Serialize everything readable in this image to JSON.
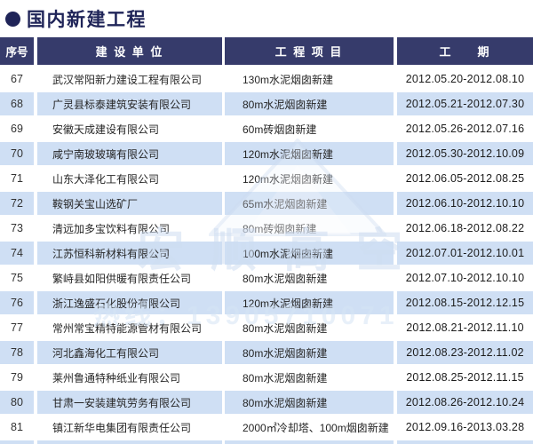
{
  "title": {
    "bullet": "●",
    "text": "国内新建工程"
  },
  "table": {
    "headers": [
      "序号",
      "建 设 单 位",
      "工 程 项 目",
      "工     期"
    ],
    "rows": [
      {
        "no": "67",
        "company": "武汉常阳新力建设工程有限公司",
        "project": "130m水泥烟囱新建",
        "period": "2012.05.20-2012.08.10"
      },
      {
        "no": "68",
        "company": "广灵县标泰建筑安装有限公司",
        "project": "80m水泥烟囱新建",
        "period": "2012.05.21-2012.07.30"
      },
      {
        "no": "69",
        "company": "安徽天成建设有限公司",
        "project": "60m砖烟囱新建",
        "period": "2012.05.26-2012.07.16"
      },
      {
        "no": "70",
        "company": "咸宁南玻玻璃有限公司",
        "project": "120m水泥烟囱新建",
        "period": "2012.05.30-2012.10.09"
      },
      {
        "no": "71",
        "company": "山东大泽化工有限公司",
        "project": "120m水泥烟囱新建",
        "period": "2012.06.05-2012.08.25"
      },
      {
        "no": "72",
        "company": "鞍钢关宝山选矿厂",
        "project": "65m水泥烟囱新建",
        "period": "2012.06.10-2012.10.10"
      },
      {
        "no": "73",
        "company": "清远加多宝饮料有限公司",
        "project": "80m砖烟囱新建",
        "period": "2012.06.18-2012.08.22"
      },
      {
        "no": "74",
        "company": "江苏恒科新材料有限公司",
        "project": "100m水泥烟囱新建",
        "period": "2012.07.01-2012.10.01"
      },
      {
        "no": "75",
        "company": "繁峙县如阳供暖有限责任公司",
        "project": "80m水泥烟囱新建",
        "period": "2012.07.10-2012.10.10"
      },
      {
        "no": "76",
        "company": "浙江逸盛石化股份有限公司",
        "project": "120m水泥烟囱新建",
        "period": "2012.08.15-2012.12.15"
      },
      {
        "no": "77",
        "company": "常州常宝精特能源管材有限公司",
        "project": "80m水泥烟囱新建",
        "period": "2012.08.21-2012.11.10"
      },
      {
        "no": "78",
        "company": "河北鑫海化工有限公司",
        "project": "80m水泥烟囱新建",
        "period": "2012.08.23-2012.11.02"
      },
      {
        "no": "79",
        "company": "莱州鲁通特种纸业有限公司",
        "project": "80m水泥烟囱新建",
        "period": "2012.08.25-2012.11.15"
      },
      {
        "no": "80",
        "company": "甘肃一安装建筑劳务有限公司",
        "project": "80m水泥烟囱新建",
        "period": "2012.08.26-2012.10.24"
      },
      {
        "no": "81",
        "company": "镇江新华电集团有限责任公司",
        "project": "2000㎡冷却塔、100m烟囱新建",
        "period": "2012.09.16-2013.03.28"
      }
    ]
  },
  "watermark": {
    "text": "宏顺高空",
    "phone": "热线：13905710071"
  },
  "colors": {
    "header_navy": "#363b6b",
    "title_navy": "#1f2458",
    "row_alt_blue": "#cfdff4",
    "body_text": "#262626"
  }
}
